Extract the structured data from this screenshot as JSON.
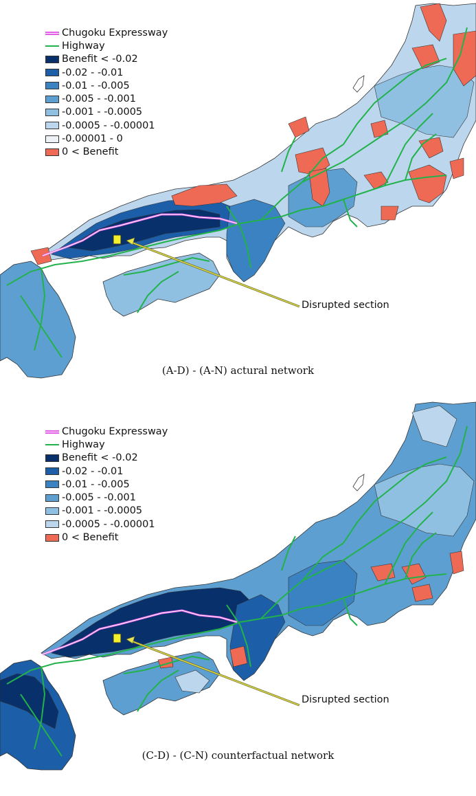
{
  "colors": {
    "c1": "#08306b",
    "c2": "#1c5ea8",
    "c3": "#3a82c2",
    "c4": "#5e9fd1",
    "c5": "#8fc0e2",
    "c6": "#bcd7ed",
    "c7": "#eef1f5",
    "pos": "#ef6a55",
    "highway": "#22b24c",
    "expressway": "#e25ee8",
    "marker": "#f2ef2b"
  },
  "panel_a": {
    "legend": {
      "expressway": "Chugoku Expressway",
      "highway": "Highway",
      "classes": [
        {
          "label": "Benefit < -0.02",
          "color": "#08306b"
        },
        {
          "label": "-0.02 - -0.01",
          "color": "#1c5ea8"
        },
        {
          "label": "-0.01 - -0.005",
          "color": "#3a82c2"
        },
        {
          "label": "-0.005 - -0.001",
          "color": "#5e9fd1"
        },
        {
          "label": "-0.001 - -0.0005",
          "color": "#8fc0e2"
        },
        {
          "label": "-0.0005 - -0.00001",
          "color": "#bcd7ed"
        },
        {
          "label": "-0.00001 - 0",
          "color": "#eef1f5"
        },
        {
          "label": "0 < Benefit",
          "color": "#ef6a55"
        }
      ]
    },
    "callout": "Disrupted section",
    "caption": "(A-D) - (A-N) actural network"
  },
  "panel_b": {
    "legend": {
      "expressway": "Chugoku Expressway",
      "highway": "Highway",
      "classes": [
        {
          "label": "Benefit < -0.02",
          "color": "#08306b"
        },
        {
          "label": "-0.02 - -0.01",
          "color": "#1c5ea8"
        },
        {
          "label": "-0.01 - -0.005",
          "color": "#3a82c2"
        },
        {
          "label": "-0.005 - -0.001",
          "color": "#5e9fd1"
        },
        {
          "label": "-0.001 - -0.0005",
          "color": "#8fc0e2"
        },
        {
          "label": "-0.0005 - -0.00001",
          "color": "#bcd7ed"
        },
        {
          "label": "0 < Benefit",
          "color": "#ef6a55"
        }
      ]
    },
    "callout": "Disrupted section",
    "caption": "(C-D) - (C-N) counterfactual network"
  }
}
